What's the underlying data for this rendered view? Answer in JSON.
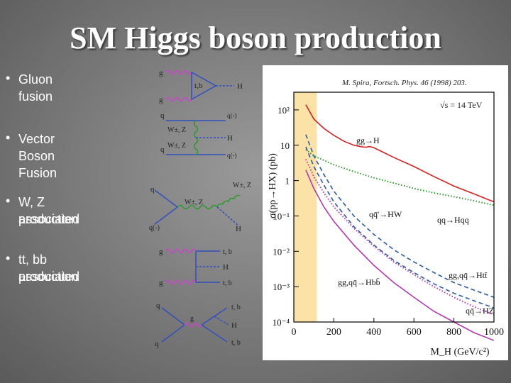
{
  "slide": {
    "title": "SM Higgs boson production"
  },
  "bullets": [
    {
      "marker": "•",
      "lines": [
        "Gluon fusion"
      ]
    },
    {
      "marker": "•",
      "lines": [
        "Vector Boson Fusion"
      ]
    },
    {
      "marker": "•",
      "lines": [
        "W, Z associated",
        "production"
      ]
    },
    {
      "marker": "•",
      "lines": [
        "tt, bb associated",
        "production"
      ]
    }
  ],
  "diagrams": {
    "gluon_fusion": {
      "in_top": "g",
      "in_bottom": "g",
      "loop": "t,b",
      "out": "H"
    },
    "vbf": {
      "in_top": "q",
      "in_bottom": "q",
      "out_top": "q(-)",
      "out_bottom": "q(-)",
      "boson_top": "W±, Z",
      "boson_bottom": "W±, Z",
      "out": "H"
    },
    "associated_vh": {
      "in_top": "q",
      "in_bottom": "q(-)",
      "boson": "W±, Z",
      "out_boson": "W±, Z",
      "out": "H"
    },
    "tth_gg": {
      "in_top": "g",
      "in_bottom": "g",
      "out_top": "t, b",
      "out_mid": "H",
      "out_bottom": "t, b"
    },
    "tth_qq": {
      "in_top": "q",
      "in_bottom": "q",
      "gluon": "g",
      "out_top": "t, b",
      "out_mid": "H",
      "out_bottom": "t, b"
    }
  },
  "chart_data": {
    "type": "line",
    "citation": "M. Spira, Fortsch. Phys. 46 (1998) 203.",
    "energy_label": "√s = 14 TeV",
    "ylabel": "σ(pp→HX) (pb)",
    "xlabel": "M_H (GeV/c²)",
    "xlim": [
      0,
      1000
    ],
    "ylim_log10": [
      -4,
      2.5
    ],
    "y_scale": "log",
    "x_ticks": [
      0,
      200,
      400,
      600,
      800,
      1000
    ],
    "y_tick_labels": [
      "10⁻⁴",
      "10⁻³",
      "10⁻²",
      "10⁻¹",
      "1",
      "10",
      "10²"
    ],
    "y_tick_values": [
      0.0001,
      0.001,
      0.01,
      0.1,
      1,
      10,
      100
    ],
    "excluded_band": {
      "from": 0,
      "to": 115,
      "color": "#fbe3a8"
    },
    "series": [
      {
        "name": "gg→H",
        "color": "#d42020",
        "dash": "solid",
        "x": [
          60,
          100,
          150,
          200,
          250,
          300,
          340,
          360,
          380,
          400,
          450,
          500,
          600,
          700,
          800,
          900,
          1000
        ],
        "y": [
          140,
          55,
          30,
          19,
          13,
          10,
          9,
          8.8,
          9.2,
          8.5,
          6.2,
          4.5,
          2.5,
          1.3,
          0.7,
          0.42,
          0.25
        ]
      },
      {
        "name": "qq→Hqq",
        "color": "#2a9a2a",
        "dash": "dotted",
        "x": [
          60,
          100,
          200,
          300,
          400,
          500,
          600,
          700,
          800,
          900,
          1000
        ],
        "y": [
          7.5,
          5,
          2.8,
          1.8,
          1.2,
          0.85,
          0.6,
          0.45,
          0.35,
          0.27,
          0.2
        ]
      },
      {
        "name": "qq̄'→HW",
        "color": "#2a5aa0",
        "dash": "dashed",
        "x": [
          60,
          100,
          150,
          200,
          300,
          400,
          500,
          600,
          700,
          800,
          900,
          1000
        ],
        "y": [
          20,
          5,
          1.5,
          0.5,
          0.1,
          0.03,
          0.011,
          0.005,
          0.0025,
          0.0013,
          0.0008,
          0.0005
        ]
      },
      {
        "name": "qq̄→HZ",
        "color": "#2a5aa0",
        "dash": "dashed",
        "x": [
          60,
          100,
          150,
          200,
          300,
          400,
          500,
          600,
          700,
          800,
          900,
          1000
        ],
        "y": [
          9,
          2.5,
          0.75,
          0.25,
          0.05,
          0.015,
          0.0055,
          0.0025,
          0.0012,
          0.00065,
          0.0004,
          0.00025
        ]
      },
      {
        "name": "gg,qq̄→Htt̄",
        "color": "#b03ab0",
        "dash": "dotted",
        "x": [
          60,
          100,
          150,
          200,
          300,
          400,
          500,
          600,
          700,
          800,
          900,
          1000
        ],
        "y": [
          4,
          1.3,
          0.45,
          0.18,
          0.045,
          0.014,
          0.005,
          0.0022,
          0.001,
          0.0005,
          0.00027,
          0.00016
        ]
      },
      {
        "name": "gg,qq̄→Hbb̄",
        "color": "#b03ab0",
        "dash": "solid",
        "x": [
          60,
          100,
          150,
          200,
          300,
          400,
          500,
          600,
          700,
          800,
          900,
          1000
        ],
        "y": [
          2,
          0.6,
          0.18,
          0.07,
          0.015,
          0.004,
          0.0013,
          0.0005,
          0.0002,
          0.0001,
          5e-05,
          3e-05
        ]
      }
    ],
    "series_labels": [
      {
        "text": "gg→H",
        "series": 0
      },
      {
        "text": "qq̄'→HW",
        "series": 2
      },
      {
        "text": "qq→Hqq",
        "series": 1
      },
      {
        "text": "gg,qq̄→Htt̄",
        "series": 4
      },
      {
        "text": "gg,qq̄→Hbb̄",
        "series": 5
      },
      {
        "text": "qq̄→HZ",
        "series": 3
      }
    ]
  }
}
